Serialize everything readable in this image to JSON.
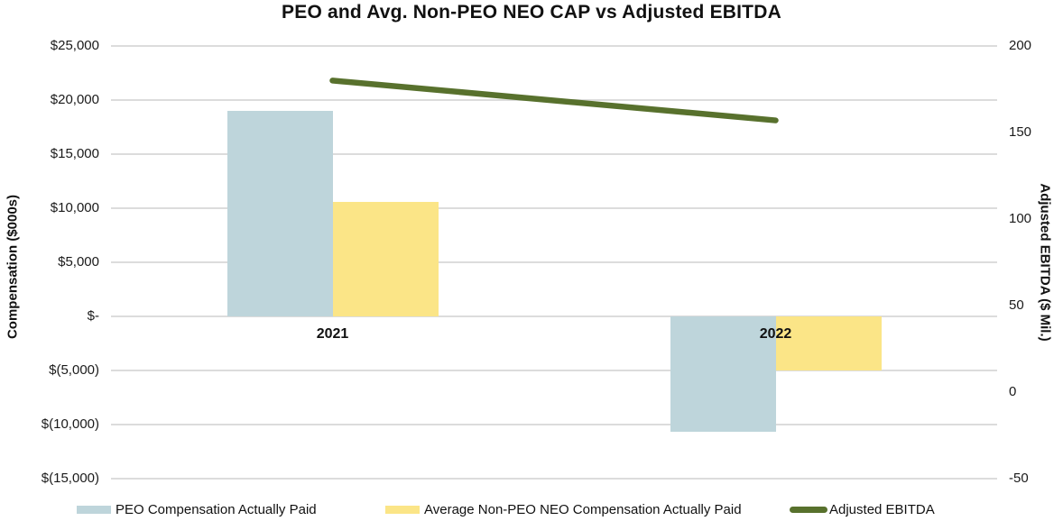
{
  "chart": {
    "title": "PEO and Avg. Non-PEO NEO CAP vs Adjusted EBITDA",
    "left_axis_title": "Compensation ($000s)",
    "right_axis_title": "Adjusted EBITDA ($ Mil.)"
  },
  "chart_data": {
    "type": "bar",
    "subtype": "bar-line-combo",
    "title": "PEO and Avg. Non-PEO NEO CAP vs Adjusted EBITDA",
    "categories": [
      "2021",
      "2022"
    ],
    "series": [
      {
        "name": "PEO Compensation Actually Paid",
        "type": "bar",
        "axis": "left",
        "values": [
          19000,
          -10700
        ],
        "color": "#bed5db"
      },
      {
        "name": "Average Non-PEO NEO Compensation Actually Paid",
        "type": "bar",
        "axis": "left",
        "values": [
          10600,
          -5000
        ],
        "color": "#fbe587"
      },
      {
        "name": "Adjusted EBITDA",
        "type": "line",
        "axis": "right",
        "values": [
          180,
          157
        ],
        "color": "#58712d"
      }
    ],
    "left_axis": {
      "title": "Compensation ($000s)",
      "tick_labels": [
        "$25,000",
        "$20,000",
        "$15,000",
        "$10,000",
        "$5,000",
        "$-",
        "$(5,000)",
        "$(10,000)",
        "$(15,000)"
      ],
      "tick_values": [
        25000,
        20000,
        15000,
        10000,
        5000,
        0,
        -5000,
        -10000,
        -15000
      ],
      "range": [
        -15000,
        25000
      ]
    },
    "right_axis": {
      "title": "Adjusted EBITDA ($ Mil.)",
      "tick_labels": [
        "200",
        "150",
        "100",
        "50",
        "0",
        "-50"
      ],
      "tick_values": [
        200,
        150,
        100,
        50,
        0,
        -50
      ],
      "range": [
        -50,
        200
      ]
    },
    "grid": true,
    "legend_position": "bottom",
    "gridline_color": "#dcdcdc"
  },
  "legend": {
    "items": [
      {
        "label": "PEO Compensation Actually Paid",
        "color": "#bed5db",
        "marker": "rect"
      },
      {
        "label": "Average Non-PEO NEO Compensation Actually Paid",
        "color": "#fbe587",
        "marker": "rect"
      },
      {
        "label": "Adjusted EBITDA",
        "color": "#58712d",
        "marker": "line"
      }
    ]
  }
}
